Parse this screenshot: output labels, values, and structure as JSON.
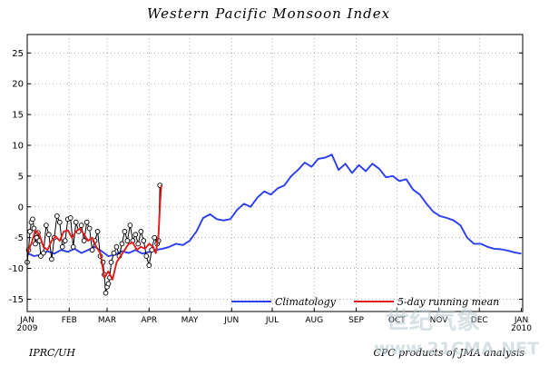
{
  "chart_data": {
    "type": "line",
    "title": "Western Pacific Monsoon Index",
    "ylim": [
      -17,
      28
    ],
    "y_ticks": [
      -15,
      -10,
      -5,
      0,
      5,
      10,
      15,
      20,
      25
    ],
    "x_unit": "day of year (Jan 1 2009 = 0)",
    "xlim": [
      0,
      366
    ],
    "month_ticks": [
      {
        "label": "JAN",
        "day": 0
      },
      {
        "label": "FEB",
        "day": 31
      },
      {
        "label": "MAR",
        "day": 59
      },
      {
        "label": "APR",
        "day": 90
      },
      {
        "label": "MAY",
        "day": 120
      },
      {
        "label": "JUN",
        "day": 151
      },
      {
        "label": "JUL",
        "day": 181
      },
      {
        "label": "AUG",
        "day": 212
      },
      {
        "label": "SEP",
        "day": 243
      },
      {
        "label": "OCT",
        "day": 273
      },
      {
        "label": "NOV",
        "day": 304
      },
      {
        "label": "DEC",
        "day": 334
      },
      {
        "label": "JAN",
        "day": 365
      }
    ],
    "year_labels": [
      {
        "label": "2009",
        "day": 0
      },
      {
        "label": "2010",
        "day": 365
      }
    ],
    "series": [
      {
        "name": "Climatology",
        "color": "#2b3ff0",
        "x": [
          0,
          5,
          10,
          15,
          20,
          25,
          30,
          35,
          40,
          45,
          50,
          55,
          60,
          65,
          70,
          75,
          80,
          85,
          90,
          95,
          100,
          105,
          110,
          115,
          120,
          125,
          130,
          135,
          140,
          145,
          150,
          155,
          160,
          165,
          170,
          175,
          180,
          185,
          190,
          195,
          200,
          205,
          210,
          215,
          220,
          225,
          230,
          235,
          240,
          245,
          250,
          255,
          260,
          265,
          270,
          275,
          280,
          285,
          290,
          295,
          300,
          305,
          310,
          315,
          320,
          325,
          330,
          335,
          340,
          345,
          350,
          355,
          360,
          365
        ],
        "values": [
          -7.5,
          -8.0,
          -7.8,
          -7.2,
          -7.6,
          -7.0,
          -7.3,
          -6.8,
          -7.5,
          -7.0,
          -6.5,
          -7.2,
          -8.0,
          -7.8,
          -7.2,
          -7.5,
          -7.0,
          -7.6,
          -7.3,
          -7.0,
          -6.8,
          -6.5,
          -6.0,
          -6.2,
          -5.5,
          -4.0,
          -1.8,
          -1.2,
          -2.0,
          -2.2,
          -2.0,
          -0.5,
          0.5,
          0.0,
          1.5,
          2.5,
          2.0,
          3.0,
          3.5,
          5.0,
          6.0,
          7.2,
          6.5,
          7.8,
          8.0,
          8.5,
          6.0,
          7.0,
          5.5,
          6.8,
          5.8,
          7.0,
          6.2,
          4.8,
          5.0,
          4.2,
          4.5,
          2.8,
          2.0,
          0.5,
          -0.8,
          -1.5,
          -1.8,
          -2.2,
          -3.0,
          -5.0,
          -6.0,
          -6.0,
          -6.5,
          -6.8,
          -6.9,
          -7.1,
          -7.4,
          -7.6
        ]
      },
      {
        "name": "5-day running mean",
        "color": "#e21b1b",
        "x": [
          0,
          3,
          6,
          9,
          12,
          15,
          18,
          21,
          24,
          27,
          30,
          33,
          36,
          39,
          42,
          45,
          48,
          51,
          54,
          57,
          60,
          63,
          66,
          69,
          72,
          75,
          78,
          81,
          84,
          87,
          90,
          93,
          95,
          97,
          98,
          99
        ],
        "values": [
          -7.5,
          -6.0,
          -3.8,
          -4.5,
          -6.5,
          -7.0,
          -5.5,
          -4.8,
          -5.5,
          -4.0,
          -3.8,
          -5.0,
          -4.0,
          -3.5,
          -4.5,
          -5.5,
          -5.0,
          -6.5,
          -7.5,
          -11.5,
          -10.5,
          -11.8,
          -9.0,
          -8.0,
          -7.0,
          -6.0,
          -5.8,
          -7.0,
          -6.5,
          -6.8,
          -6.0,
          -6.5,
          -7.5,
          -4.5,
          0.0,
          3.5
        ]
      },
      {
        "name": "Daily",
        "color": "#000000",
        "x": [
          0,
          1,
          2,
          3,
          4,
          5,
          6,
          7,
          8,
          9,
          10,
          12,
          14,
          16,
          18,
          20,
          22,
          24,
          26,
          28,
          30,
          32,
          34,
          36,
          38,
          40,
          42,
          44,
          46,
          48,
          50,
          52,
          54,
          56,
          57,
          58,
          59,
          60,
          61,
          62,
          64,
          66,
          68,
          70,
          72,
          74,
          76,
          78,
          80,
          82,
          84,
          86,
          88,
          90,
          92,
          94,
          96,
          97,
          98
        ],
        "values": [
          -9.0,
          -7.0,
          -4.0,
          -2.5,
          -2.0,
          -3.5,
          -6.0,
          -5.0,
          -4.2,
          -5.5,
          -8.0,
          -7.5,
          -3.0,
          -4.5,
          -8.5,
          -5.0,
          -1.5,
          -2.5,
          -6.5,
          -5.5,
          -2.0,
          -1.8,
          -6.5,
          -2.5,
          -4.0,
          -3.0,
          -5.5,
          -2.5,
          -3.5,
          -7.0,
          -5.5,
          -4.0,
          -8.0,
          -9.0,
          -11.0,
          -14.0,
          -13.0,
          -12.5,
          -11.5,
          -9.0,
          -7.5,
          -6.5,
          -8.0,
          -6.0,
          -4.0,
          -5.5,
          -3.0,
          -5.5,
          -4.5,
          -6.0,
          -4.0,
          -5.5,
          -8.0,
          -9.5,
          -7.0,
          -5.0,
          -6.0,
          -5.5,
          3.5
        ]
      }
    ],
    "legend": [
      {
        "label": "Climatology",
        "color": "#2b3ff0"
      },
      {
        "label": "5-day running mean",
        "color": "#e21b1b"
      }
    ],
    "grid": true
  },
  "footer": {
    "left": "IPRC/UH",
    "right": "CPC products of JMA analysis"
  },
  "watermark": {
    "brand": "世纪气象",
    "url": "www.21CMA.NET"
  }
}
